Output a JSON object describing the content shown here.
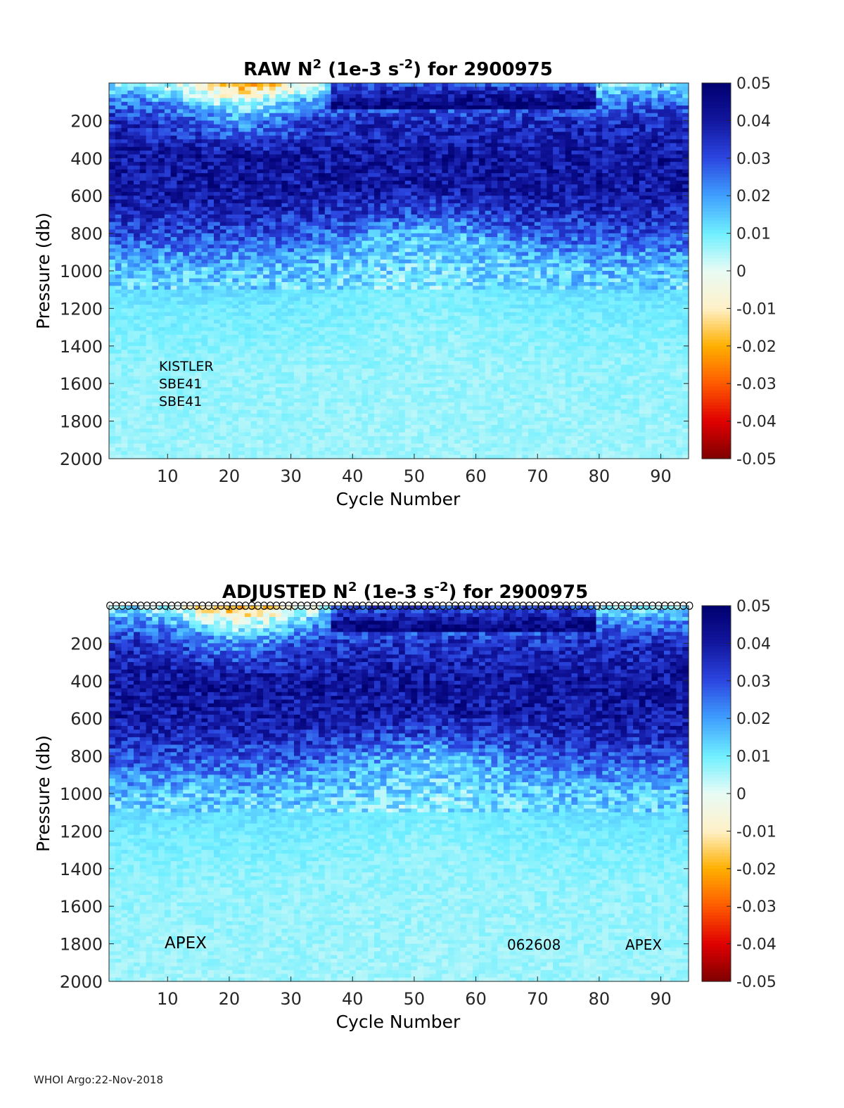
{
  "chart_data": [
    {
      "type": "heatmap",
      "title_prefix": "RAW N",
      "title_sup1": "2",
      "title_mid": " (1e-3 s",
      "title_sup2": "-2",
      "title_suffix": ") for 2900975",
      "xlabel": "Cycle Number",
      "ylabel": "Pressure (db)",
      "xlim": [
        1,
        94
      ],
      "ylim": [
        0,
        2000
      ],
      "y_reversed": true,
      "xticks": [
        "10",
        "20",
        "30",
        "40",
        "50",
        "60",
        "70",
        "80",
        "90"
      ],
      "yticks": [
        "200",
        "400",
        "600",
        "800",
        "1000",
        "1200",
        "1400",
        "1600",
        "1800",
        "2000"
      ],
      "annotations": [
        "KISTLER",
        "SBE41",
        "SBE41"
      ],
      "colorbar": {
        "range": [
          -0.05,
          0.05
        ],
        "ticks": [
          "0.05",
          "0.04",
          "0.03",
          "0.02",
          "0.01",
          "0",
          "-0.01",
          "-0.02",
          "-0.03",
          "-0.04",
          "-0.05"
        ]
      },
      "depth_profile": [
        {
          "p": 0,
          "v": 0.008
        },
        {
          "p": 100,
          "v": 0.025
        },
        {
          "p": 200,
          "v": 0.035
        },
        {
          "p": 400,
          "v": 0.041
        },
        {
          "p": 600,
          "v": 0.04
        },
        {
          "p": 800,
          "v": 0.03
        },
        {
          "p": 900,
          "v": 0.022
        },
        {
          "p": 1000,
          "v": 0.015
        },
        {
          "p": 1200,
          "v": 0.01
        },
        {
          "p": 1500,
          "v": 0.007
        },
        {
          "p": 2000,
          "v": 0.006
        }
      ]
    },
    {
      "type": "heatmap",
      "title_prefix": "ADJUSTED N",
      "title_sup1": "2",
      "title_mid": " (1e-3 s",
      "title_sup2": "-2",
      "title_suffix": ") for 2900975",
      "xlabel": "Cycle Number",
      "ylabel": "Pressure (db)",
      "xlim": [
        1,
        94
      ],
      "ylim": [
        0,
        2000
      ],
      "y_reversed": true,
      "xticks": [
        "10",
        "20",
        "30",
        "40",
        "50",
        "60",
        "70",
        "80",
        "90"
      ],
      "yticks": [
        "200",
        "400",
        "600",
        "800",
        "1000",
        "1200",
        "1400",
        "1600",
        "1800",
        "2000"
      ],
      "annotations": [
        "APEX",
        "062608",
        "APEX"
      ],
      "colorbar": {
        "range": [
          -0.05,
          0.05
        ],
        "ticks": [
          "0.05",
          "0.04",
          "0.03",
          "0.02",
          "0.01",
          "0",
          "-0.01",
          "-0.02",
          "-0.03",
          "-0.04",
          "-0.05"
        ]
      },
      "profile_markers": "open circles at surface for each cycle",
      "depth_profile": [
        {
          "p": 0,
          "v": 0.008
        },
        {
          "p": 100,
          "v": 0.025
        },
        {
          "p": 200,
          "v": 0.035
        },
        {
          "p": 400,
          "v": 0.041
        },
        {
          "p": 600,
          "v": 0.04
        },
        {
          "p": 800,
          "v": 0.03
        },
        {
          "p": 900,
          "v": 0.022
        },
        {
          "p": 1000,
          "v": 0.015
        },
        {
          "p": 1200,
          "v": 0.01
        },
        {
          "p": 1500,
          "v": 0.007
        },
        {
          "p": 2000,
          "v": 0.006
        }
      ]
    }
  ],
  "footer": "WHOI Argo:22-Nov-2018",
  "colormap": [
    "#7f0000",
    "#e00000",
    "#ff5a00",
    "#ffb000",
    "#fff1c8",
    "#e8fbf5",
    "#6fefff",
    "#3f9fff",
    "#2b46e0",
    "#12169e",
    "#00006f"
  ]
}
